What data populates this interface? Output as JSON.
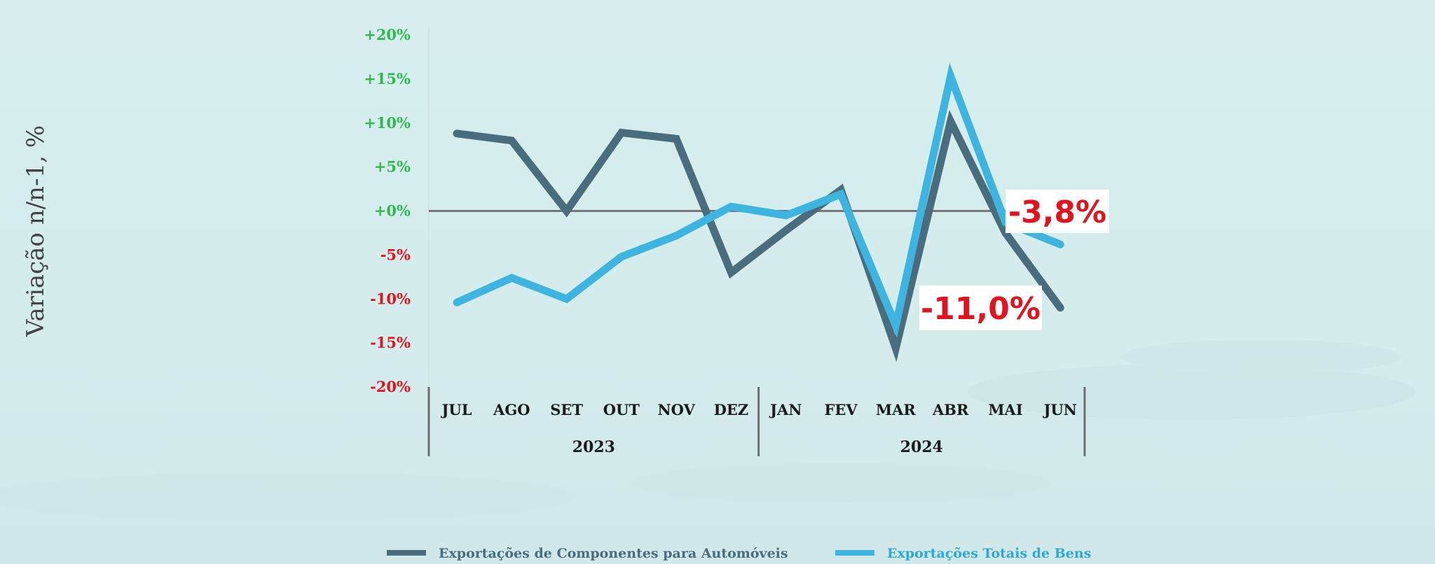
{
  "chart_data": {
    "type": "line",
    "ylabel": "Variação n/n-1, %",
    "ylim": [
      -20,
      20
    ],
    "y_ticks": [
      {
        "value": 20,
        "label": "+20%"
      },
      {
        "value": 15,
        "label": "+15%"
      },
      {
        "value": 10,
        "label": "+10%"
      },
      {
        "value": 5,
        "label": "+5%"
      },
      {
        "value": 0,
        "label": "+0%"
      },
      {
        "value": -5,
        "label": "-5%"
      },
      {
        "value": -10,
        "label": "-10%"
      },
      {
        "value": -15,
        "label": "-15%"
      },
      {
        "value": -20,
        "label": "-20%"
      }
    ],
    "categories": [
      "JUL",
      "AGO",
      "SET",
      "OUT",
      "NOV",
      "DEZ",
      "JAN",
      "FEV",
      "MAR",
      "ABR",
      "MAI",
      "JUN"
    ],
    "groups": [
      {
        "label": "2023",
        "span": 6
      },
      {
        "label": "2024",
        "span": 6
      }
    ],
    "series": [
      {
        "name": "Exportações de Componentes para Automóveis",
        "color": "#4a6d7e",
        "values": [
          8.8,
          8.0,
          0.0,
          8.9,
          8.2,
          -7.0,
          -2.2,
          2.4,
          -15.6,
          10.2,
          -2.5,
          -11.0
        ]
      },
      {
        "name": "Exportações Totais de Bens",
        "color": "#3db5e0",
        "values": [
          -10.4,
          -7.6,
          -10.0,
          -5.2,
          -2.8,
          0.5,
          -0.5,
          1.9,
          -13.0,
          15.3,
          -1.3,
          -3.8
        ]
      }
    ],
    "callouts": [
      {
        "text": "-3,8%"
      },
      {
        "text": "-11,0%"
      }
    ],
    "colors": {
      "positive_tick": "#2eb84f",
      "negative_tick": "#e0141e",
      "zero_line": "#777777",
      "callout": "#e0141e"
    },
    "legend_position": "bottom"
  }
}
